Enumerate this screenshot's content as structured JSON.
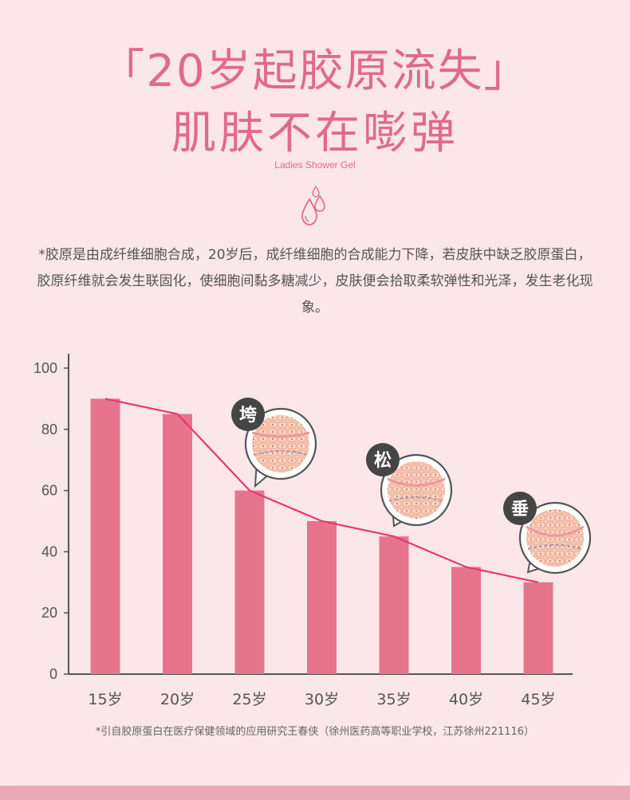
{
  "header": {
    "title_line1": "「20岁起胶原流失」",
    "title_line2": "肌肤不在嘭弹",
    "subtitle": "Ladies Shower Gel",
    "description": "*胶原是由成纤维细胞合成，20岁后，成纤维细胞的合成能力下降，若皮肤中缺乏胶原蛋白，胶原纤维就会发生联固化，使细胞间黏多糖减少，皮肤便会拾取柔软弹性和光泽，发生老化现象。"
  },
  "footnote": "*引自胶原蛋白在医疗保健领域的应用研究王春侠（徐州医药高等职业学校，江苏徐州221116）",
  "colors": {
    "bar": "#e7748d",
    "line": "#e8386b",
    "title": "#e06a8c",
    "badge": "#454545"
  },
  "callouts": [
    {
      "label": "垮",
      "age": "25岁"
    },
    {
      "label": "松",
      "age": "35岁"
    },
    {
      "label": "垂",
      "age": "45岁"
    }
  ],
  "chart_data": {
    "type": "bar",
    "categories": [
      "15岁",
      "20岁",
      "25岁",
      "30岁",
      "35岁",
      "40岁",
      "45岁"
    ],
    "values": [
      90,
      85,
      60,
      50,
      45,
      35,
      30
    ],
    "overlay_line": [
      90,
      85,
      60,
      50,
      45,
      35,
      30
    ],
    "ylim": [
      0,
      100
    ],
    "yticks": [
      0,
      20,
      40,
      60,
      80,
      100
    ],
    "grid": false,
    "title": "",
    "xlabel": "",
    "ylabel": ""
  }
}
